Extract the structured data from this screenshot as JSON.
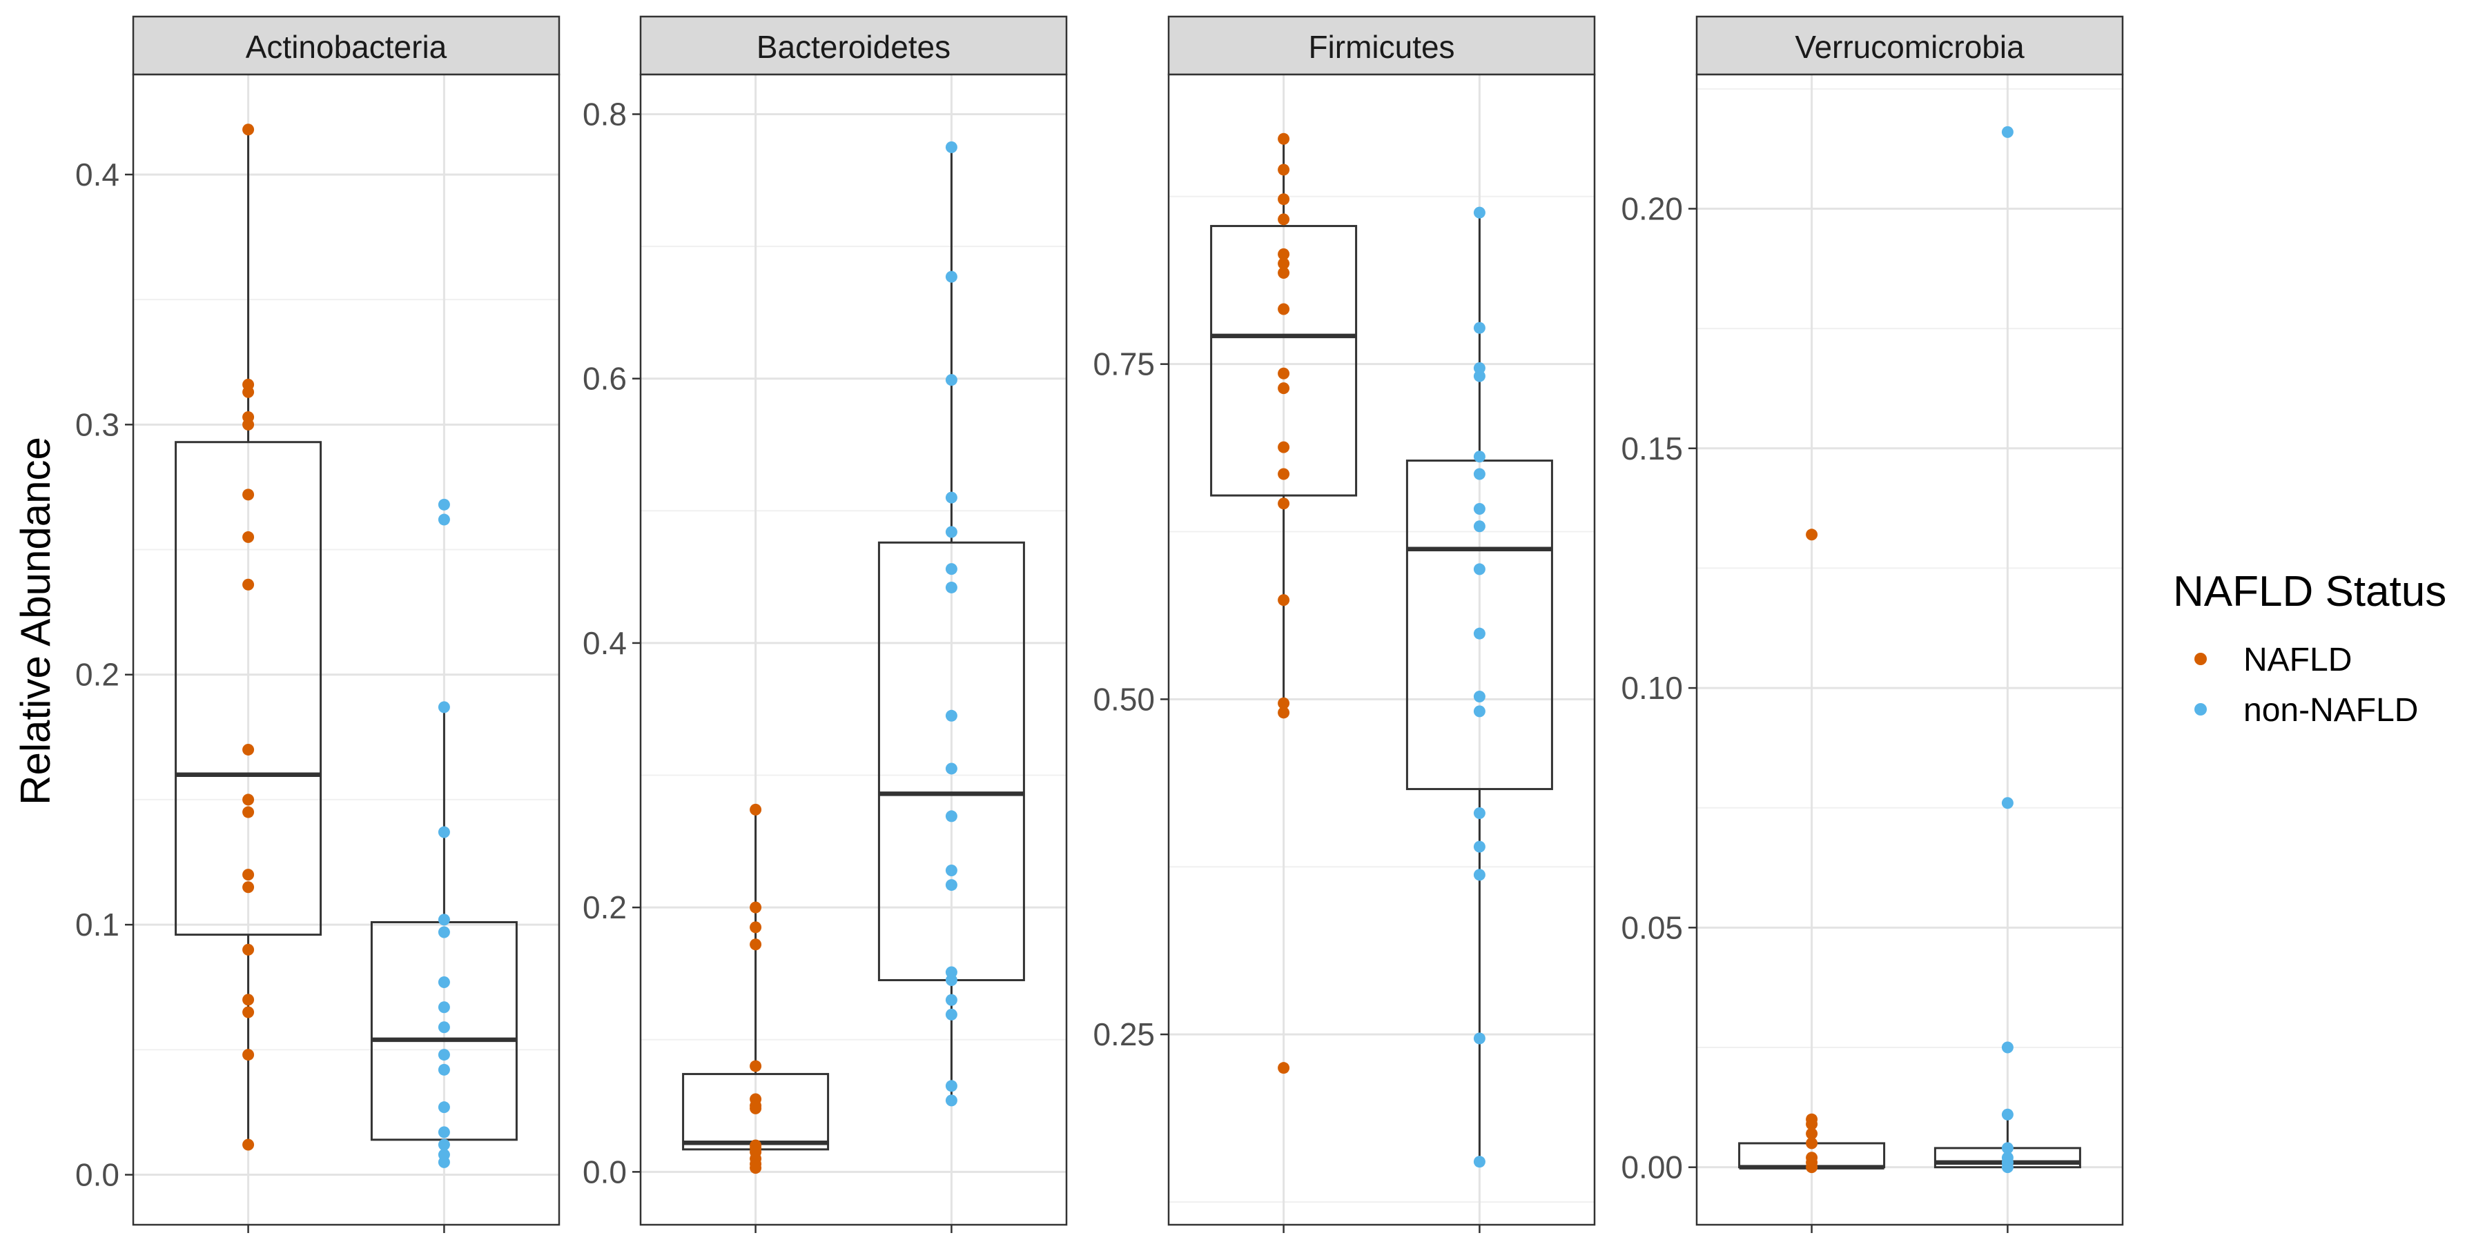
{
  "chart_data": {
    "type": "box",
    "ylabel": "Relative Abundance",
    "xlabel": "",
    "legend": {
      "title": "NAFLD Status",
      "position": "right",
      "entries": [
        {
          "label": "NAFLD",
          "color": "#d55e00"
        },
        {
          "label": "non-NAFLD",
          "color": "#56b4e9"
        }
      ]
    },
    "grid": true,
    "facets": [
      {
        "name": "Actinobacteria",
        "ylim": [
          -0.02,
          0.44
        ],
        "ticks": [
          0.0,
          0.1,
          0.2,
          0.3,
          0.4
        ],
        "tick_labels": [
          "0.0",
          "0.1",
          "0.2",
          "0.3",
          "0.4"
        ],
        "groups": [
          {
            "series": "NAFLD",
            "box": {
              "min": 0.012,
              "q1": 0.096,
              "median": 0.16,
              "q3": 0.293,
              "max": 0.418
            },
            "points": [
              0.418,
              0.316,
              0.313,
              0.303,
              0.3,
              0.272,
              0.255,
              0.236,
              0.17,
              0.15,
              0.145,
              0.12,
              0.115,
              0.09,
              0.07,
              0.065,
              0.048,
              0.012
            ]
          },
          {
            "series": "non-NAFLD",
            "box": {
              "min": 0.005,
              "q1": 0.014,
              "median": 0.054,
              "q3": 0.101,
              "max": 0.187
            },
            "points": [
              0.268,
              0.262,
              0.187,
              0.137,
              0.102,
              0.097,
              0.077,
              0.067,
              0.059,
              0.048,
              0.042,
              0.027,
              0.017,
              0.012,
              0.008,
              0.005
            ]
          }
        ]
      },
      {
        "name": "Bacteroidetes",
        "ylim": [
          -0.04,
          0.83
        ],
        "ticks": [
          0.0,
          0.2,
          0.4,
          0.6,
          0.8
        ],
        "tick_labels": [
          "0.0",
          "0.2",
          "0.4",
          "0.6",
          "0.8"
        ],
        "groups": [
          {
            "series": "NAFLD",
            "box": {
              "min": 0.003,
              "q1": 0.017,
              "median": 0.022,
              "q3": 0.074,
              "max": 0.274
            },
            "points": [
              0.274,
              0.2,
              0.185,
              0.172,
              0.08,
              0.055,
              0.05,
              0.048,
              0.02,
              0.018,
              0.015,
              0.01,
              0.006,
              0.003
            ]
          },
          {
            "series": "non-NAFLD",
            "box": {
              "min": 0.054,
              "q1": 0.145,
              "median": 0.286,
              "q3": 0.476,
              "max": 0.775
            },
            "points": [
              0.775,
              0.677,
              0.599,
              0.51,
              0.484,
              0.456,
              0.442,
              0.345,
              0.305,
              0.269,
              0.228,
              0.217,
              0.151,
              0.145,
              0.13,
              0.119,
              0.065,
              0.054
            ]
          }
        ]
      },
      {
        "name": "Firmicutes",
        "ylim": [
          0.108,
          0.966
        ],
        "ticks": [
          0.25,
          0.5,
          0.75
        ],
        "tick_labels": [
          "0.25",
          "0.50",
          "0.75"
        ],
        "groups": [
          {
            "series": "NAFLD",
            "box": {
              "min": 0.49,
              "q1": 0.652,
              "median": 0.771,
              "q3": 0.853,
              "max": 0.918
            },
            "points": [
              0.918,
              0.895,
              0.873,
              0.858,
              0.832,
              0.825,
              0.818,
              0.791,
              0.743,
              0.732,
              0.688,
              0.668,
              0.646,
              0.574,
              0.497,
              0.49,
              0.225
            ]
          },
          {
            "series": "non-NAFLD",
            "box": {
              "min": 0.155,
              "q1": 0.433,
              "median": 0.612,
              "q3": 0.678,
              "max": 0.863
            },
            "points": [
              0.863,
              0.777,
              0.747,
              0.741,
              0.681,
              0.668,
              0.642,
              0.629,
              0.597,
              0.549,
              0.502,
              0.491,
              0.415,
              0.39,
              0.369,
              0.247,
              0.155
            ]
          }
        ]
      },
      {
        "name": "Verrucomicrobia",
        "ylim": [
          -0.012,
          0.228
        ],
        "ticks": [
          0.0,
          0.05,
          0.1,
          0.15,
          0.2
        ],
        "tick_labels": [
          "0.00",
          "0.05",
          "0.10",
          "0.15",
          "0.20"
        ],
        "groups": [
          {
            "series": "NAFLD",
            "box": {
              "min": 0.0,
              "q1": 0.0,
              "median": 0.0,
              "q3": 0.005,
              "max": 0.01
            },
            "points": [
              0.132,
              0.01,
              0.009,
              0.007,
              0.005,
              0.002,
              0.001,
              0.0
            ]
          },
          {
            "series": "non-NAFLD",
            "box": {
              "min": 0.0,
              "q1": 0.0,
              "median": 0.001,
              "q3": 0.004,
              "max": 0.01
            },
            "points": [
              0.216,
              0.076,
              0.025,
              0.011,
              0.004,
              0.002,
              0.001,
              0.0
            ]
          }
        ]
      }
    ]
  }
}
